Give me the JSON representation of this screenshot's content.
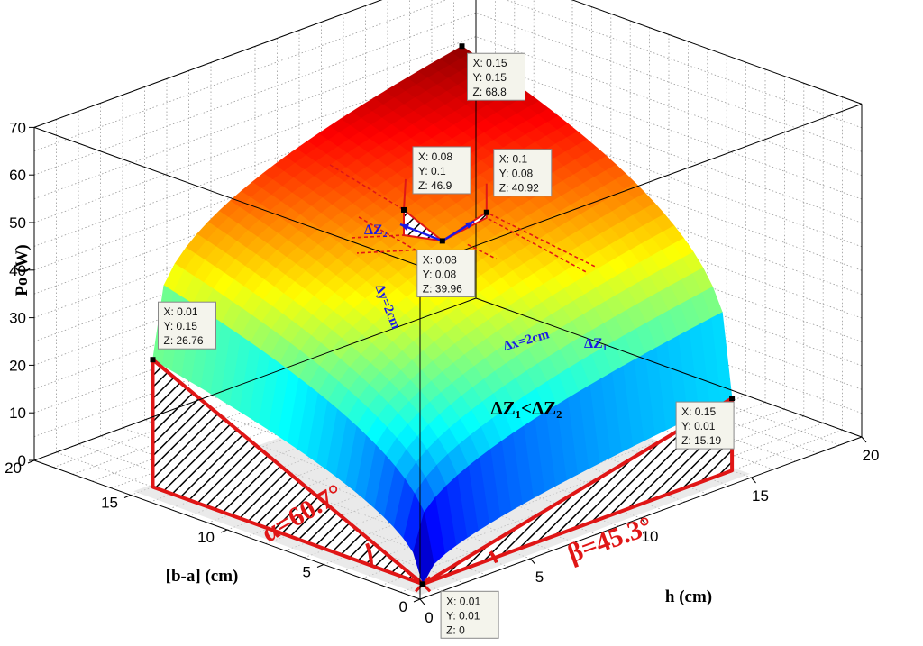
{
  "chart_data": {
    "type": "surface",
    "title": "",
    "xlabel": "h (cm)",
    "ylabel": "[b-a] (cm)",
    "zlabel": "Po (W)",
    "xlim": [
      0,
      20
    ],
    "ylim": [
      0,
      20
    ],
    "zlim": [
      0,
      70
    ],
    "x_ticks": [
      0,
      5,
      10,
      15,
      20
    ],
    "y_ticks": [
      0,
      5,
      10,
      15,
      20
    ],
    "z_ticks": [
      0,
      10,
      20,
      30,
      40,
      50,
      60,
      70
    ],
    "grid": true,
    "colormap": "jet",
    "data_tips": [
      {
        "label_x": "X: 0.15",
        "label_y": "Y: 0.15",
        "label_z": "Z: 68.8",
        "x": 0.15,
        "y": 0.15,
        "z": 68.8
      },
      {
        "label_x": "X: 0.08",
        "label_y": "Y: 0.1",
        "label_z": "Z: 46.9",
        "x": 0.08,
        "y": 0.1,
        "z": 46.9
      },
      {
        "label_x": "X: 0.1",
        "label_y": "Y: 0.08",
        "label_z": "Z: 40.92",
        "x": 0.1,
        "y": 0.08,
        "z": 40.92
      },
      {
        "label_x": "X: 0.08",
        "label_y": "Y: 0.08",
        "label_z": "Z: 39.96",
        "x": 0.08,
        "y": 0.08,
        "z": 39.96
      },
      {
        "label_x": "X: 0.01",
        "label_y": "Y: 0.15",
        "label_z": "Z: 26.76",
        "x": 0.01,
        "y": 0.15,
        "z": 26.76
      },
      {
        "label_x": "X: 0.15",
        "label_y": "Y: 0.01",
        "label_z": "Z: 15.19",
        "x": 0.15,
        "y": 0.01,
        "z": 15.19
      },
      {
        "label_x": "X: 0.01",
        "label_y": "Y: 0.01",
        "label_z": "Z: 0",
        "x": 0.01,
        "y": 0.01,
        "z": 0
      }
    ],
    "annotations": {
      "delta_z2": "ΔZ₂",
      "delta_z1": "ΔZ₁",
      "delta_y": "Δy=2cm",
      "delta_x": "Δx=2cm",
      "inequality": "ΔZ₁<ΔZ₂",
      "alpha": "α=60.7°",
      "beta": "β=45.3°"
    }
  },
  "colors": {
    "highlight": "#e01616",
    "vector": "#1a1ae6",
    "grid": "#9a9a9a"
  }
}
